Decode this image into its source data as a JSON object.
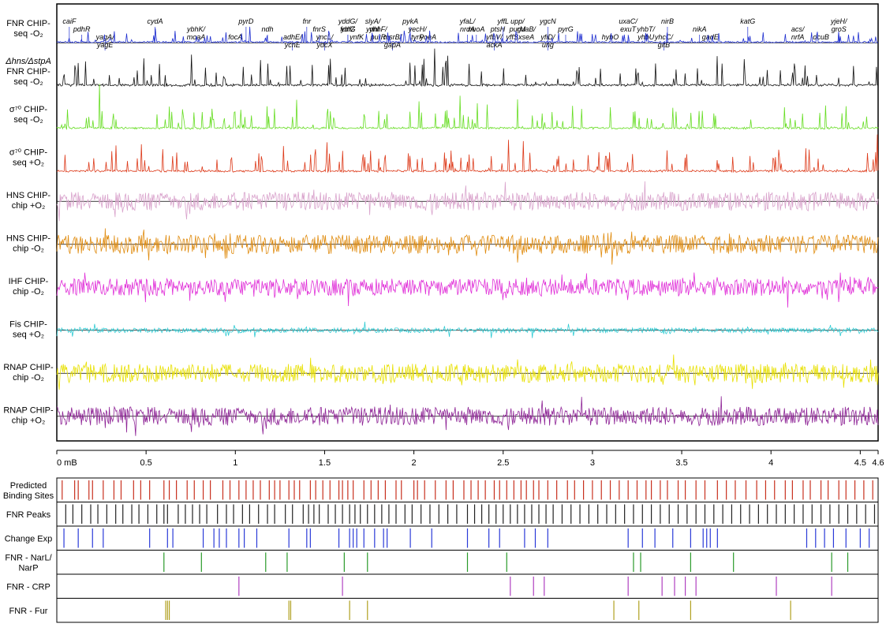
{
  "chart_data": [
    {
      "type": "line",
      "x_unit": "mB",
      "xlim": [
        0,
        4.6
      ],
      "xticks": [
        {
          "v": 0,
          "label": "0 mB"
        },
        {
          "v": 0.5,
          "label": "0.5"
        },
        {
          "v": 1,
          "label": "1"
        },
        {
          "v": 1.5,
          "label": "1.5"
        },
        {
          "v": 2,
          "label": "2"
        },
        {
          "v": 2.5,
          "label": "2.5"
        },
        {
          "v": 3,
          "label": "3"
        },
        {
          "v": 3.5,
          "label": "3.5"
        },
        {
          "v": 4,
          "label": "4"
        },
        {
          "v": 4.5,
          "label": "4.5"
        },
        {
          "v": 4.6,
          "label": "4.6"
        }
      ],
      "tracks": [
        {
          "label": [
            "FNR CHIP-",
            "seq -O₂"
          ],
          "color": "#1f2fd0",
          "style": "peaks",
          "amp": 0.5,
          "noise": 0.05,
          "baseline": true
        },
        {
          "label": [
            "Δhns/ΔstpA",
            "FNR CHIP-",
            "seq -O₂"
          ],
          "color": "#111111",
          "style": "peaks",
          "amp": 1.0,
          "noise": 0.3,
          "baseline": false
        },
        {
          "label": [
            "σ⁷⁰ CHIP-",
            "seq -O₂"
          ],
          "color": "#66dd22",
          "style": "peaks",
          "amp": 1.0,
          "noise": 0.2,
          "baseline": false
        },
        {
          "label": [
            "σ⁷⁰ CHIP-",
            "seq +O₂"
          ],
          "color": "#dd3a1a",
          "style": "peaks",
          "amp": 1.0,
          "noise": 0.2,
          "baseline": false
        },
        {
          "label": [
            "HNS CHIP-",
            "chip +O₂"
          ],
          "color": "#d9a3cc",
          "style": "wave",
          "amp": 1.0,
          "noise": 1.0,
          "baseline": true
        },
        {
          "label": [
            "HNS CHIP-",
            "chip -O₂"
          ],
          "color": "#e08c10",
          "style": "wave",
          "amp": 1.0,
          "noise": 1.0,
          "baseline": true
        },
        {
          "label": [
            "IHF CHIP-",
            "chip -O₂"
          ],
          "color": "#e030d8",
          "style": "wave",
          "amp": 1.0,
          "noise": 0.9,
          "baseline": false
        },
        {
          "label": [
            "Fis CHIP-",
            "seq +O₂"
          ],
          "color": "#30ccd4",
          "style": "wave",
          "amp": 0.5,
          "noise": 0.5,
          "baseline": true
        },
        {
          "label": [
            "RNAP CHIP-",
            "chip -O₂"
          ],
          "color": "#e8e000",
          "style": "wave",
          "amp": 1.0,
          "noise": 1.0,
          "baseline": true
        },
        {
          "label": [
            "RNAP CHIP-",
            "chip +O₂"
          ],
          "color": "#8e2496",
          "style": "wave",
          "amp": 1.0,
          "noise": 1.0,
          "baseline": true
        }
      ],
      "genes": [
        {
          "x": 0.07,
          "label": [
            "caiF"
          ]
        },
        {
          "x": 0.14,
          "label": [
            "pdhR"
          ]
        },
        {
          "x": 0.27,
          "label": [
            "yagA/",
            "yagE"
          ]
        },
        {
          "x": 0.55,
          "label": [
            "cydA"
          ]
        },
        {
          "x": 0.78,
          "label": [
            "ybhK/",
            "moaA"
          ]
        },
        {
          "x": 1.0,
          "label": [
            "focA"
          ]
        },
        {
          "x": 1.06,
          "label": [
            "pyrD"
          ]
        },
        {
          "x": 1.18,
          "label": [
            "ndh"
          ]
        },
        {
          "x": 1.32,
          "label": [
            "adhE/",
            "ychE"
          ]
        },
        {
          "x": 1.4,
          "label": [
            "fnr"
          ]
        },
        {
          "x": 1.47,
          "label": [
            "fnrS"
          ]
        },
        {
          "x": 1.5,
          "label": [
            "yncL/",
            "ydcX"
          ]
        },
        {
          "x": 1.63,
          "label": [
            "yddG/",
            "fdnG"
          ]
        },
        {
          "x": 1.63,
          "label": [
            "ydfZ"
          ]
        },
        {
          "x": 1.68,
          "label": [
            "ynfK"
          ]
        },
        {
          "x": 1.77,
          "label": [
            "slyA/",
            "ydhI"
          ]
        },
        {
          "x": 1.8,
          "label": [
            "ynhF/",
            "purR"
          ]
        },
        {
          "x": 1.88,
          "label": [
            "msrB/",
            "gapA"
          ]
        },
        {
          "x": 1.98,
          "label": [
            "pykA"
          ]
        },
        {
          "x": 2.02,
          "label": [
            "yecH/",
            "tyrP"
          ]
        },
        {
          "x": 2.08,
          "label": [
            "yoeA"
          ]
        },
        {
          "x": 2.3,
          "label": [
            "yfaL/",
            "nrdA"
          ]
        },
        {
          "x": 2.35,
          "label": [
            "nuoA"
          ]
        },
        {
          "x": 2.45,
          "label": [
            "yfbV/",
            "ackA"
          ]
        },
        {
          "x": 2.5,
          "label": [
            "yffL"
          ]
        },
        {
          "x": 2.47,
          "label": [
            "ptsH"
          ]
        },
        {
          "x": 2.55,
          "label": [
            "yffS"
          ]
        },
        {
          "x": 2.58,
          "label": [
            "upp/",
            "purM"
          ]
        },
        {
          "x": 2.63,
          "label": [
            "guaB/",
            "xseA"
          ]
        },
        {
          "x": 2.75,
          "label": [
            "yfiD/",
            "ung"
          ]
        },
        {
          "x": 2.75,
          "label": [
            "ygcN"
          ]
        },
        {
          "x": 2.85,
          "label": [
            "pyrG"
          ]
        },
        {
          "x": 3.1,
          "label": [
            "hybO"
          ]
        },
        {
          "x": 3.2,
          "label": [
            "uxaC/",
            "exuT"
          ]
        },
        {
          "x": 3.3,
          "label": [
            "yhbT/",
            "yhbU"
          ]
        },
        {
          "x": 3.4,
          "label": [
            "yhcC/",
            "gltB"
          ]
        },
        {
          "x": 3.42,
          "label": [
            "nirB"
          ]
        },
        {
          "x": 3.6,
          "label": [
            "nikA"
          ]
        },
        {
          "x": 3.66,
          "label": [
            "gadE"
          ]
        },
        {
          "x": 3.87,
          "label": [
            "katG"
          ]
        },
        {
          "x": 4.15,
          "label": [
            "acs/",
            "nrfA"
          ]
        },
        {
          "x": 4.28,
          "label": [
            "dcuB"
          ]
        },
        {
          "x": 4.38,
          "label": [
            "yjeH/",
            "groS"
          ]
        }
      ],
      "site_tracks": [
        {
          "label": [
            "Predicted",
            "Binding Sites"
          ],
          "color": "#c8301e",
          "positions": [
            0.03,
            0.1,
            0.12,
            0.18,
            0.2,
            0.26,
            0.32,
            0.36,
            0.43,
            0.47,
            0.52,
            0.6,
            0.63,
            0.67,
            0.73,
            0.77,
            0.82,
            0.86,
            0.93,
            0.97,
            1.02,
            1.06,
            1.1,
            1.14,
            1.19,
            1.22,
            1.25,
            1.3,
            1.33,
            1.36,
            1.42,
            1.45,
            1.49,
            1.53,
            1.58,
            1.6,
            1.63,
            1.66,
            1.72,
            1.76,
            1.8,
            1.84,
            1.9,
            1.93,
            2.0,
            2.02,
            2.06,
            2.12,
            2.18,
            2.22,
            2.28,
            2.32,
            2.36,
            2.4,
            2.45,
            2.48,
            2.52,
            2.56,
            2.6,
            2.63,
            2.67,
            2.7,
            2.75,
            2.8,
            2.86,
            2.9,
            2.95,
            3.0,
            3.05,
            3.1,
            3.15,
            3.2,
            3.25,
            3.3,
            3.33,
            3.38,
            3.42,
            3.48,
            3.52,
            3.58,
            3.63,
            3.7,
            3.75,
            3.8,
            3.86,
            3.92,
            3.97,
            4.02,
            4.08,
            4.12,
            4.18,
            4.22,
            4.28,
            4.32,
            4.38,
            4.42,
            4.47,
            4.52,
            4.57
          ]
        },
        {
          "label": [
            "FNR Peaks"
          ],
          "color": "#222222",
          "positions": [
            0.05,
            0.09,
            0.14,
            0.19,
            0.23,
            0.28,
            0.33,
            0.37,
            0.42,
            0.46,
            0.51,
            0.56,
            0.6,
            0.62,
            0.68,
            0.72,
            0.76,
            0.8,
            0.84,
            0.9,
            0.95,
            0.99,
            1.04,
            1.08,
            1.13,
            1.18,
            1.22,
            1.28,
            1.32,
            1.38,
            1.41,
            1.44,
            1.47,
            1.52,
            1.56,
            1.6,
            1.64,
            1.67,
            1.7,
            1.74,
            1.78,
            1.82,
            1.86,
            1.9,
            1.95,
            1.99,
            2.04,
            2.09,
            2.14,
            2.19,
            2.24,
            2.3,
            2.34,
            2.38,
            2.42,
            2.46,
            2.5,
            2.54,
            2.58,
            2.62,
            2.66,
            2.7,
            2.74,
            2.78,
            2.83,
            2.88,
            2.93,
            2.98,
            3.03,
            3.08,
            3.13,
            3.18,
            3.23,
            3.28,
            3.33,
            3.38,
            3.43,
            3.48,
            3.53,
            3.58,
            3.63,
            3.68,
            3.73,
            3.78,
            3.83,
            3.88,
            3.93,
            3.98,
            4.03,
            4.08,
            4.13,
            4.18,
            4.23,
            4.28,
            4.33,
            4.38,
            4.43,
            4.48,
            4.53,
            4.58
          ]
        },
        {
          "label": [
            "Change Exp"
          ],
          "color": "#2a3ad8",
          "positions": [
            0.04,
            0.12,
            0.2,
            0.26,
            0.52,
            0.62,
            0.65,
            0.82,
            0.88,
            0.91,
            0.95,
            1.02,
            1.05,
            1.12,
            1.3,
            1.4,
            1.42,
            1.58,
            1.64,
            1.66,
            1.68,
            1.72,
            1.78,
            1.83,
            1.85,
            1.98,
            2.1,
            2.3,
            2.42,
            2.48,
            2.62,
            2.68,
            2.75,
            3.2,
            3.28,
            3.35,
            3.45,
            3.55,
            3.62,
            3.64,
            3.66,
            3.7,
            4.2,
            4.25,
            4.3,
            4.35,
            4.42,
            4.5,
            4.55
          ]
        },
        {
          "label": [
            "FNR - NarL/",
            "NarP"
          ],
          "color": "#2a9a2a",
          "positions": [
            0.6,
            0.81,
            1.17,
            1.29,
            1.61,
            1.74,
            2.3,
            2.52,
            3.23,
            3.27,
            3.55,
            3.79,
            4.34,
            4.43
          ]
        },
        {
          "label": [
            "FNR - CRP"
          ],
          "color": "#b040c0",
          "positions": [
            1.02,
            1.6,
            2.54,
            2.67,
            2.73,
            3.2,
            3.39,
            3.46,
            3.52,
            3.58,
            4.03,
            4.34
          ]
        },
        {
          "label": [
            "FNR - Fur"
          ],
          "color": "#b0a020",
          "positions": [
            0.61,
            0.62,
            0.63,
            1.3,
            1.31,
            1.64,
            1.74,
            3.12,
            3.26,
            3.55,
            4.11
          ]
        }
      ]
    }
  ]
}
